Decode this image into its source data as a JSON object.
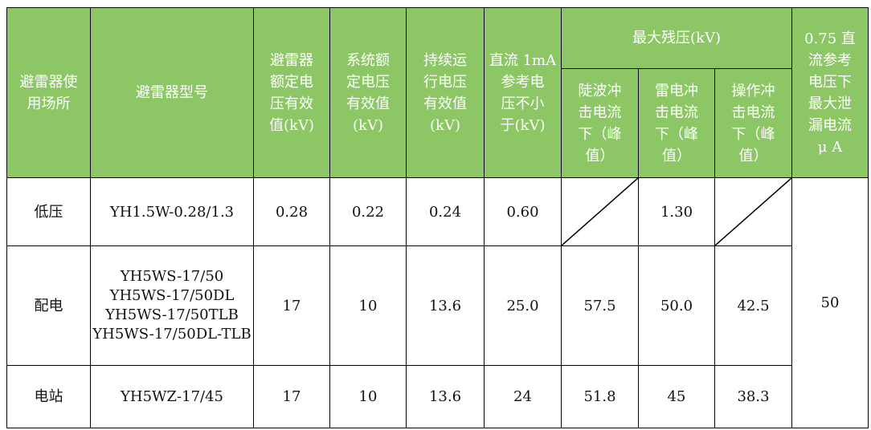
{
  "header": {
    "location": "避雷器使\n用场所",
    "model": "避雷器型号",
    "rated_voltage": "避雷器\n额定电\n压有效\n值(kV)",
    "system_voltage": "系统额\n定电压\n有效值\n(kV)",
    "continuous_voltage": "持续运\n行电压\n有效值\n(kV)",
    "dc_ref_voltage": "直流 1mA\n参考电\n压不小\n于(kV)",
    "max_residual": "最大残压(kV)",
    "steep_wave": "陡波冲\n击电流\n下（峰\n值）",
    "lightning": "雷电冲\n击电流\n下（峰\n值）",
    "switching": "操作冲\n击电流\n下（峰\n值）",
    "leakage": "0.75 直\n流参考\n电压下\n最大泄\n漏电流\nμ A"
  },
  "rows": [
    {
      "location": "低压",
      "model": "YH1.5W-0.28/1.3",
      "rated": "0.28",
      "system": "0.22",
      "continuous": "0.24",
      "dc_ref": "0.60",
      "steep": "",
      "lightning": "1.30",
      "switching": ""
    },
    {
      "location": "配电",
      "model": "YH5WS-17/50\nYH5WS-17/50DL\nYH5WS-17/50TLB\nYH5WS-17/50DL-TLB",
      "rated": "17",
      "system": "10",
      "continuous": "13.6",
      "dc_ref": "25.0",
      "steep": "57.5",
      "lightning": "50.0",
      "switching": "42.5"
    },
    {
      "location": "电站",
      "model": "YH5WZ-17/45",
      "rated": "17",
      "system": "10",
      "continuous": "13.6",
      "dc_ref": "24",
      "steep": "51.8",
      "lightning": "45",
      "switching": "38.3"
    }
  ],
  "leakage_value": "50",
  "colors": {
    "header_bg": "#8cc665",
    "header_text": "#ffffff"
  }
}
